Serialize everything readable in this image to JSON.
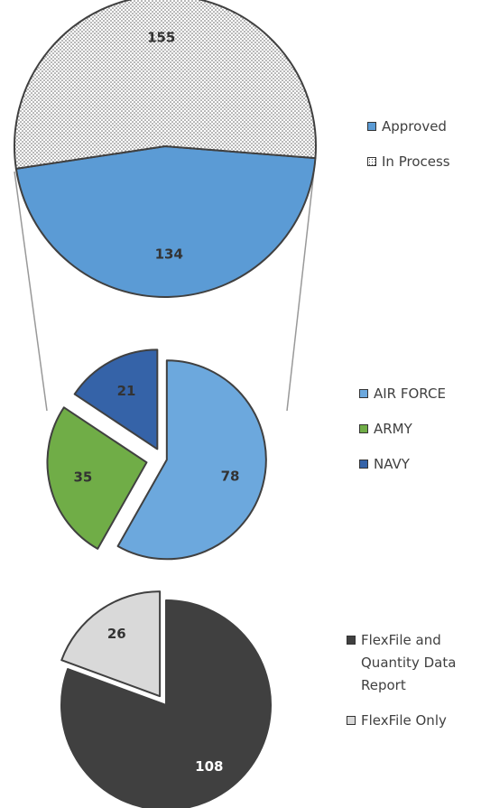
{
  "chart_data": [
    {
      "type": "pie",
      "categories": [
        "Approved",
        "In Process"
      ],
      "values": [
        134,
        155
      ],
      "colors": [
        "#5b9bd5",
        "#ffffff"
      ],
      "patterns": [
        null,
        "dots"
      ]
    },
    {
      "type": "pie",
      "categories": [
        "AIR FORCE",
        "ARMY",
        "NAVY"
      ],
      "values": [
        78,
        35,
        21
      ],
      "colors": [
        "#6ca8dd",
        "#70ad47",
        "#3563a8"
      ]
    },
    {
      "type": "pie",
      "categories": [
        "FlexFile and Quantity Data Report",
        "FlexFile Only"
      ],
      "values": [
        108,
        26
      ],
      "colors": [
        "#404040",
        "#d9d9d9"
      ]
    }
  ]
}
